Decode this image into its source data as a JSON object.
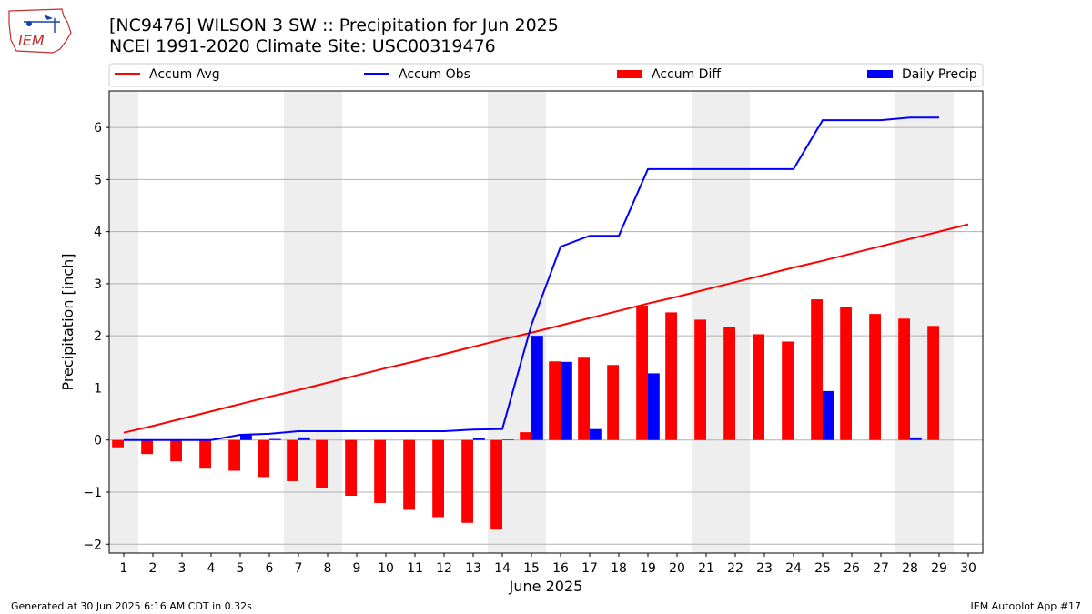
{
  "header": {
    "title_line1": "[NC9476] WILSON 3 SW :: Precipitation for Jun 2025",
    "title_line2": "NCEI 1991-2020 Climate Site: USC00319476"
  },
  "logo": {
    "text": "IEM",
    "icon": "iem-iowa-logo"
  },
  "footer": {
    "left": "Generated at 30 Jun 2025 6:16 AM CDT in 0.32s",
    "right": "IEM Autoplot App #17"
  },
  "colors": {
    "accum_avg": "#ff0000",
    "accum_obs": "#0000ff",
    "accum_diff": "#ff0000",
    "daily_precip": "#0000ff",
    "weekend_shade": "#eeeeee",
    "grid": "#b0b0b0"
  },
  "chart_data": {
    "type": "bar",
    "xlabel": "June 2025",
    "ylabel": "Precipitation [inch]",
    "ylim": [
      -2.17,
      6.7
    ],
    "xlim": [
      0.5,
      30.5
    ],
    "yticks": [
      -2,
      -1,
      0,
      1,
      2,
      3,
      4,
      5,
      6
    ],
    "ytick_labels": [
      "−2",
      "−1",
      "0",
      "1",
      "2",
      "3",
      "4",
      "5",
      "6"
    ],
    "grid": "horizontal",
    "legend_placement": "top",
    "days": [
      1,
      2,
      3,
      4,
      5,
      6,
      7,
      8,
      9,
      10,
      11,
      12,
      13,
      14,
      15,
      16,
      17,
      18,
      19,
      20,
      21,
      22,
      23,
      24,
      25,
      26,
      27,
      28,
      29,
      30
    ],
    "weekend_bands": [
      [
        0.5,
        1.5
      ],
      [
        6.5,
        8.5
      ],
      [
        13.5,
        15.5
      ],
      [
        20.5,
        22.5
      ],
      [
        27.5,
        29.5
      ]
    ],
    "series": [
      {
        "name": "Accum Avg",
        "kind": "line",
        "days": [
          1,
          2,
          3,
          4,
          5,
          6,
          7,
          8,
          9,
          10,
          11,
          12,
          13,
          14,
          15,
          16,
          17,
          18,
          19,
          20,
          21,
          22,
          23,
          24,
          25,
          26,
          27,
          28,
          29,
          30
        ],
        "values": [
          0.14,
          0.27,
          0.41,
          0.55,
          0.69,
          0.83,
          0.96,
          1.1,
          1.24,
          1.38,
          1.51,
          1.65,
          1.79,
          1.93,
          2.06,
          2.2,
          2.34,
          2.48,
          2.62,
          2.75,
          2.89,
          3.03,
          3.17,
          3.31,
          3.44,
          3.58,
          3.72,
          3.86,
          4.0,
          4.14
        ]
      },
      {
        "name": "Accum Obs",
        "kind": "line",
        "days": [
          1,
          2,
          3,
          4,
          5,
          6,
          7,
          8,
          9,
          10,
          11,
          12,
          13,
          14,
          15,
          16,
          17,
          18,
          19,
          20,
          21,
          22,
          23,
          24,
          25,
          26,
          27,
          28,
          29
        ],
        "values": [
          0.0,
          0.0,
          0.0,
          0.0,
          0.1,
          0.12,
          0.17,
          0.17,
          0.17,
          0.17,
          0.17,
          0.17,
          0.2,
          0.21,
          2.21,
          3.71,
          3.92,
          3.92,
          5.2,
          5.2,
          5.2,
          5.2,
          5.2,
          5.2,
          6.14,
          6.14,
          6.14,
          6.19,
          6.19
        ]
      },
      {
        "name": "Accum Diff",
        "kind": "bar",
        "days": [
          1,
          2,
          3,
          4,
          5,
          6,
          7,
          8,
          9,
          10,
          11,
          12,
          13,
          14,
          15,
          16,
          17,
          18,
          19,
          20,
          21,
          22,
          23,
          24,
          25,
          26,
          27,
          28,
          29
        ],
        "values": [
          -0.14,
          -0.27,
          -0.41,
          -0.55,
          -0.59,
          -0.71,
          -0.79,
          -0.93,
          -1.07,
          -1.21,
          -1.34,
          -1.48,
          -1.59,
          -1.72,
          0.15,
          1.51,
          1.58,
          1.44,
          2.58,
          2.45,
          2.31,
          2.17,
          2.03,
          1.89,
          2.7,
          2.56,
          2.42,
          2.33,
          2.19
        ]
      },
      {
        "name": "Daily Precip",
        "kind": "bar",
        "days": [
          1,
          2,
          3,
          4,
          5,
          6,
          7,
          8,
          9,
          10,
          11,
          12,
          13,
          14,
          15,
          16,
          17,
          18,
          19,
          20,
          21,
          22,
          23,
          24,
          25,
          26,
          27,
          28,
          29
        ],
        "values": [
          0,
          0,
          0,
          0,
          0.1,
          0.02,
          0.05,
          0,
          0,
          0,
          0,
          0,
          0.03,
          0.01,
          2.0,
          1.5,
          0.21,
          0,
          1.28,
          0,
          0,
          0,
          0,
          0,
          0.94,
          0,
          0,
          0.05,
          0
        ]
      }
    ]
  }
}
